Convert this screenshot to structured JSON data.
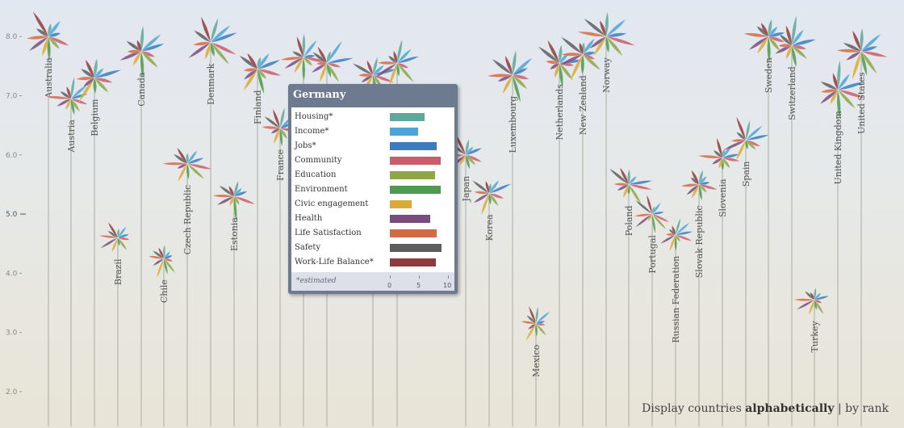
{
  "colors": {
    "Housing": "#5ea79a",
    "Income": "#4ea3d8",
    "Jobs": "#3a7cbd",
    "Community": "#c85d6c",
    "Education": "#8ea549",
    "Environment": "#4e9a4e",
    "Civic engagement": "#d9aa35",
    "Health": "#7a4c7c",
    "Life Satisfaction": "#d26a48",
    "Safety": "#5d5d5d",
    "Work-Life Balance": "#8f3a3c"
  },
  "chart_data": {
    "type": "scatter",
    "ylim": [
      1.8,
      8.5
    ],
    "yticks": [
      "2.0",
      "3.0",
      "4.0",
      "5.0",
      "6.0",
      "7.0",
      "8.0"
    ],
    "average_label": "5.0",
    "countries": [
      {
        "name": "Australia",
        "y": 8.0
      },
      {
        "name": "Austria",
        "y": 6.95
      },
      {
        "name": "Belgium",
        "y": 7.3
      },
      {
        "name": "Brazil",
        "y": 4.6
      },
      {
        "name": "Canada",
        "y": 7.75
      },
      {
        "name": "Chile",
        "y": 4.25
      },
      {
        "name": "Czech Republic",
        "y": 5.85
      },
      {
        "name": "Denmark",
        "y": 7.9
      },
      {
        "name": "Estonia",
        "y": 5.3
      },
      {
        "name": "Finland",
        "y": 7.45
      },
      {
        "name": "France",
        "y": 6.45
      },
      {
        "name": "Japan",
        "y": 6.0
      },
      {
        "name": "Korea",
        "y": 5.35
      },
      {
        "name": "Luxembourg",
        "y": 7.35
      },
      {
        "name": "Netherlands",
        "y": 7.55
      },
      {
        "name": "New Zealand",
        "y": 7.7
      },
      {
        "name": "Norway",
        "y": 8.0
      },
      {
        "name": "Poland",
        "y": 5.5
      },
      {
        "name": "Portugal",
        "y": 5.0
      },
      {
        "name": "Russian Federation",
        "y": 4.65
      },
      {
        "name": "Slovak Republic",
        "y": 5.5
      },
      {
        "name": "Slovenia",
        "y": 5.95
      },
      {
        "name": "Spain",
        "y": 6.25
      },
      {
        "name": "Sweden",
        "y": 8.0
      },
      {
        "name": "Switzerland",
        "y": 7.85
      },
      {
        "name": "Mexico",
        "y": 3.15
      },
      {
        "name": "Turkey",
        "y": 3.55
      },
      {
        "name": "United Kingdom",
        "y": 7.1
      },
      {
        "name": "United States",
        "y": 7.75
      }
    ],
    "hidden_flowers": [
      {
        "y": 7.65
      },
      {
        "y": 7.55
      },
      {
        "y": 7.35
      },
      {
        "y": 7.55
      }
    ]
  },
  "tooltip": {
    "country": "Germany",
    "note": "*estimated",
    "scale": [
      "0",
      "5",
      "10"
    ],
    "rows": [
      {
        "label": "Housing*",
        "key": "Housing",
        "value": 6.0
      },
      {
        "label": "Income*",
        "key": "Income",
        "value": 4.8
      },
      {
        "label": "Jobs*",
        "key": "Jobs",
        "value": 8.0
      },
      {
        "label": "Community",
        "key": "Community",
        "value": 8.8
      },
      {
        "label": "Education",
        "key": "Education",
        "value": 7.8
      },
      {
        "label": "Environment",
        "key": "Environment",
        "value": 8.7
      },
      {
        "label": "Civic engagement",
        "key": "Civic engagement",
        "value": 3.8
      },
      {
        "label": "Health",
        "key": "Health",
        "value": 7.0
      },
      {
        "label": "Life Satisfaction",
        "key": "Life Satisfaction",
        "value": 8.0
      },
      {
        "label": "Safety",
        "key": "Safety",
        "value": 8.9
      },
      {
        "label": "Work-Life Balance*",
        "key": "Work-Life Balance",
        "value": 7.9
      }
    ]
  },
  "sort": {
    "prefix": "Display countries",
    "alphabetical": "alphabetically",
    "separator": "|",
    "rank": "by rank"
  }
}
